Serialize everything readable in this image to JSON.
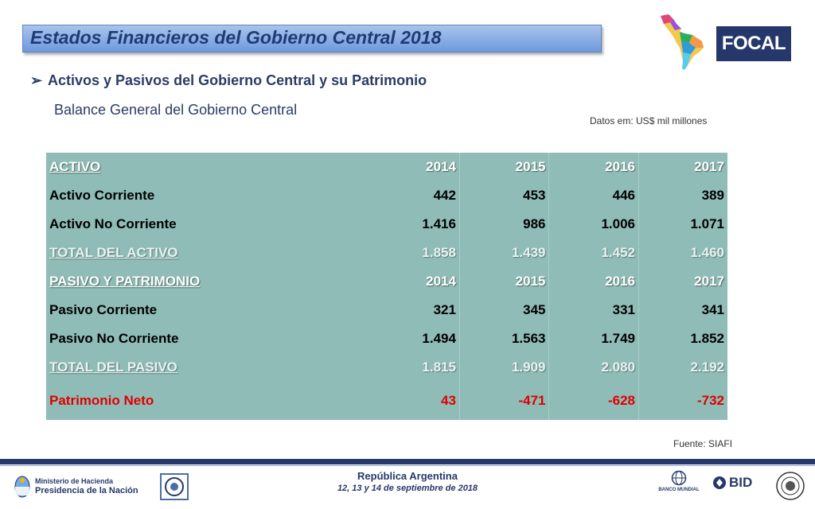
{
  "header": {
    "title": "Estados Financieros del Gobierno Central 2018",
    "logo_text": "FOCAL"
  },
  "section": {
    "bullet_text": "Activos y Pasivos del Gobierno Central y su Patrimonio",
    "subtitle": "Balance General del Gobierno Central",
    "units": "Datos em: US$ mil millones"
  },
  "table": {
    "rows": [
      {
        "type": "hdr",
        "label": "ACTIVO",
        "values": [
          "2014",
          "2015",
          "2016",
          "2017"
        ]
      },
      {
        "type": "normal",
        "label": "Activo Corriente",
        "values": [
          "442",
          "453",
          "446",
          "389"
        ]
      },
      {
        "type": "normal",
        "label": "Activo No Corriente",
        "values": [
          "1.416",
          "986",
          "1.006",
          "1.071"
        ]
      },
      {
        "type": "total",
        "label": "TOTAL DEL ACTIVO",
        "values": [
          "1.858",
          "1.439",
          "1.452",
          "1.460"
        ]
      },
      {
        "type": "hdr",
        "label": "PASIVO Y PATRIMONIO",
        "values": [
          "2014",
          "2015",
          "2016",
          "2017"
        ]
      },
      {
        "type": "normal",
        "label": "Pasivo Corriente",
        "values": [
          "321",
          "345",
          "331",
          "341"
        ]
      },
      {
        "type": "normal",
        "label": "Pasivo No Corriente",
        "values": [
          "1.494",
          "1.563",
          "1.749",
          "1.852"
        ]
      },
      {
        "type": "total",
        "label": "TOTAL DEL PASIVO",
        "values": [
          "1.815",
          "1.909",
          "2.080",
          "2.192"
        ]
      },
      {
        "type": "neto",
        "label": "Patrimonio Neto",
        "values": [
          "43",
          "-471",
          "-628",
          "-732"
        ]
      }
    ],
    "source": "Fuente: SIAFI"
  },
  "footer": {
    "ministry_line1": "Ministerio de Hacienda",
    "ministry_line2": "Presidencia de la Nación",
    "country": "República Argentina",
    "dates": "12, 13 y 14 de septiembre de 2018",
    "worldbank_label": "BANCO MUNDIAL",
    "bid_label": "BID"
  },
  "colors": {
    "table_bg": "#8fbcb6",
    "title_text": "#1f3a75",
    "navy": "#26386b",
    "negative_red": "#e00000"
  },
  "icons": [
    "latin-america-map-icon",
    "argentina-shield-icon",
    "seal-icon",
    "globe-icon",
    "bid-icon",
    "imf-seal-icon"
  ]
}
